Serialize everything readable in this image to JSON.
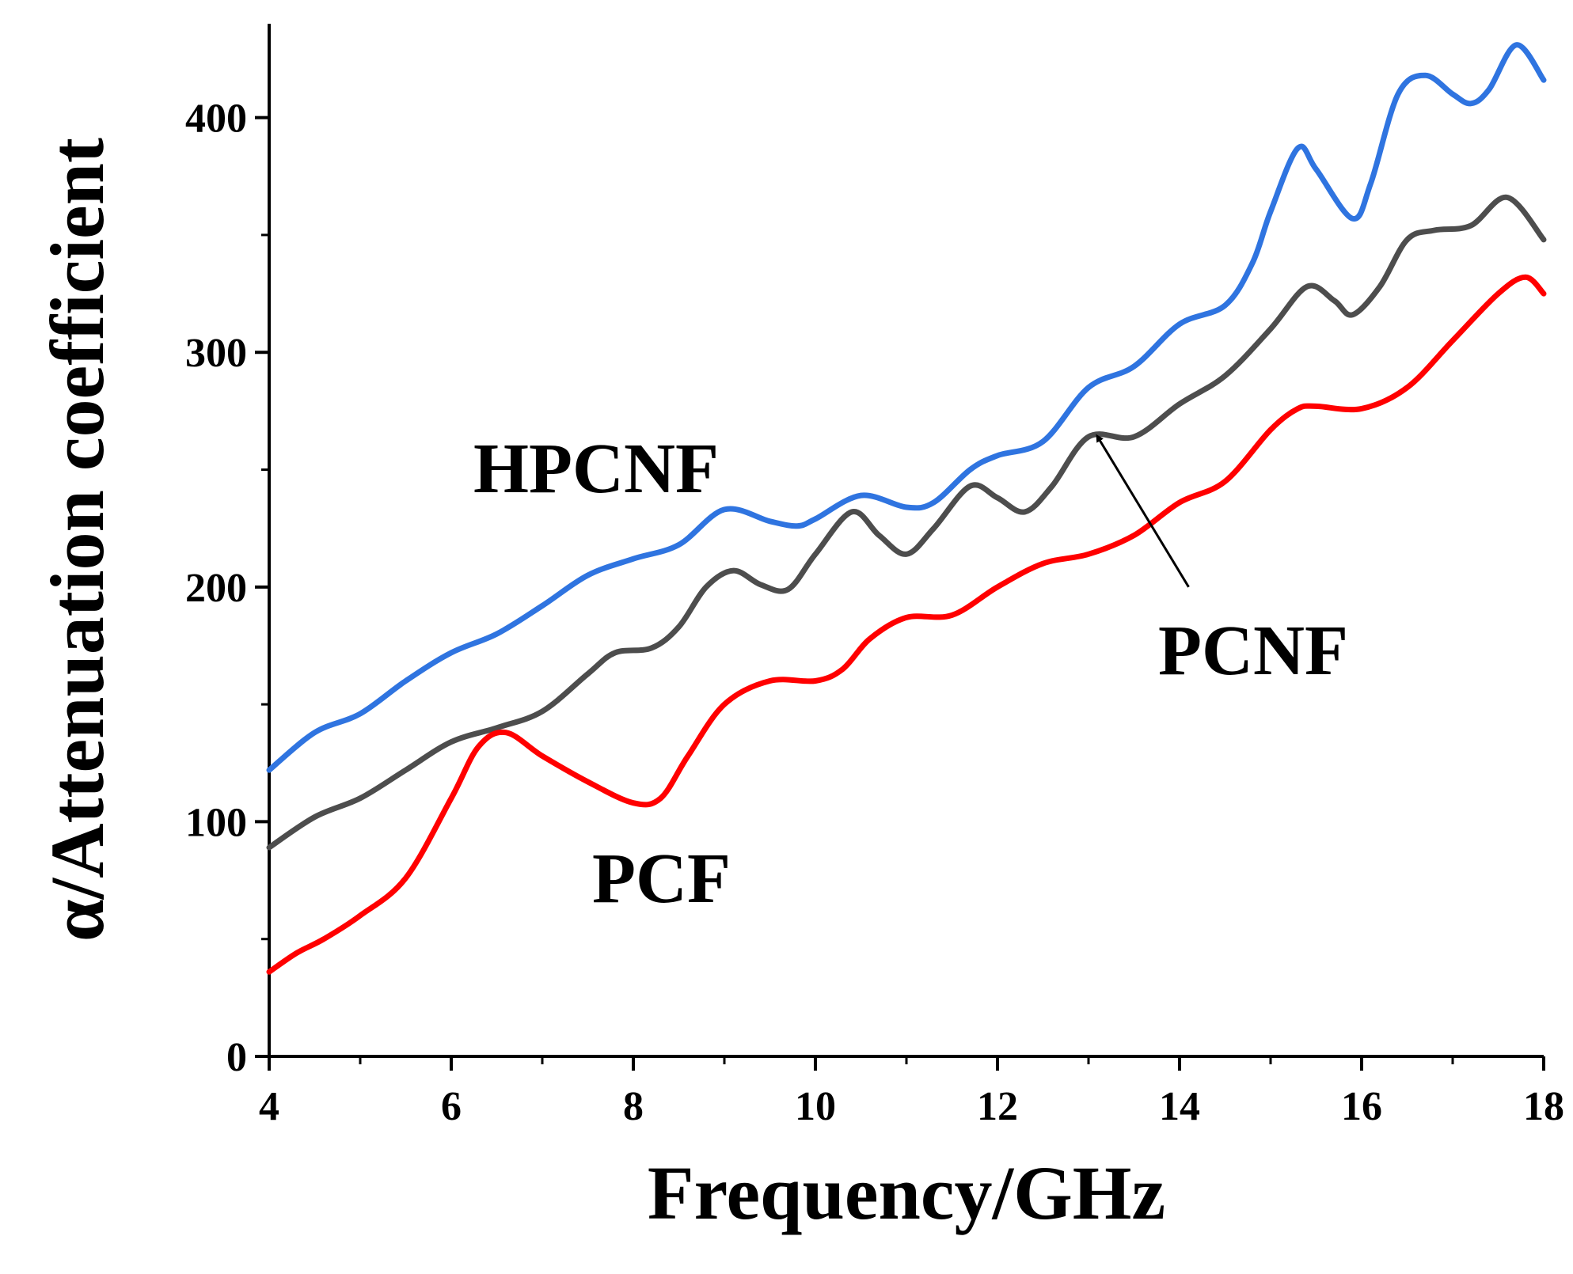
{
  "chart_data": {
    "type": "line",
    "title": "",
    "xlabel": "Frequency/GHz",
    "ylabel": "α/Attenuation coefficient",
    "xlim": [
      4,
      18
    ],
    "ylim": [
      0,
      440
    ],
    "x_ticks": [
      4,
      6,
      8,
      10,
      12,
      14,
      16,
      18
    ],
    "x_tick_labels": [
      "4",
      "6",
      "8",
      "10",
      "12",
      "14",
      "16",
      "18"
    ],
    "y_ticks": [
      0,
      100,
      200,
      300,
      400
    ],
    "y_tick_labels": [
      "0",
      "100",
      "200",
      "300",
      "400"
    ],
    "grid": false,
    "series": [
      {
        "name": "HPCNF",
        "color": "#2f74e0",
        "points": [
          [
            4.0,
            122
          ],
          [
            4.5,
            138
          ],
          [
            5.0,
            146
          ],
          [
            5.5,
            160
          ],
          [
            6.0,
            172
          ],
          [
            6.5,
            180
          ],
          [
            7.0,
            192
          ],
          [
            7.5,
            205
          ],
          [
            8.0,
            212
          ],
          [
            8.5,
            218
          ],
          [
            9.0,
            233
          ],
          [
            9.5,
            228
          ],
          [
            9.8,
            226
          ],
          [
            10.0,
            229
          ],
          [
            10.5,
            239
          ],
          [
            11.0,
            234
          ],
          [
            11.3,
            236
          ],
          [
            11.7,
            250
          ],
          [
            12.0,
            256
          ],
          [
            12.5,
            262
          ],
          [
            13.0,
            285
          ],
          [
            13.5,
            294
          ],
          [
            14.0,
            312
          ],
          [
            14.5,
            320
          ],
          [
            14.8,
            338
          ],
          [
            15.0,
            360
          ],
          [
            15.3,
            387
          ],
          [
            15.5,
            378
          ],
          [
            15.9,
            357
          ],
          [
            16.1,
            372
          ],
          [
            16.4,
            410
          ],
          [
            16.7,
            418
          ],
          [
            17.0,
            410
          ],
          [
            17.2,
            406
          ],
          [
            17.4,
            412
          ],
          [
            17.7,
            431
          ],
          [
            18.0,
            416
          ]
        ]
      },
      {
        "name": "PCNF",
        "color": "#4d4d4d",
        "points": [
          [
            4.0,
            89
          ],
          [
            4.5,
            102
          ],
          [
            5.0,
            110
          ],
          [
            5.5,
            122
          ],
          [
            6.0,
            134
          ],
          [
            6.5,
            140
          ],
          [
            7.0,
            147
          ],
          [
            7.5,
            163
          ],
          [
            7.8,
            172
          ],
          [
            8.2,
            174
          ],
          [
            8.5,
            183
          ],
          [
            8.8,
            200
          ],
          [
            9.1,
            207
          ],
          [
            9.4,
            201
          ],
          [
            9.7,
            199
          ],
          [
            10.0,
            214
          ],
          [
            10.4,
            232
          ],
          [
            10.7,
            222
          ],
          [
            11.0,
            214
          ],
          [
            11.3,
            225
          ],
          [
            11.7,
            243
          ],
          [
            12.0,
            238
          ],
          [
            12.3,
            232
          ],
          [
            12.6,
            243
          ],
          [
            13.0,
            264
          ],
          [
            13.5,
            264
          ],
          [
            14.0,
            278
          ],
          [
            14.5,
            290
          ],
          [
            15.0,
            310
          ],
          [
            15.4,
            328
          ],
          [
            15.7,
            322
          ],
          [
            15.9,
            316
          ],
          [
            16.2,
            328
          ],
          [
            16.5,
            348
          ],
          [
            16.8,
            352
          ],
          [
            17.2,
            354
          ],
          [
            17.6,
            366
          ],
          [
            18.0,
            348
          ]
        ]
      },
      {
        "name": "PCF",
        "color": "#ff0000",
        "points": [
          [
            4.0,
            36
          ],
          [
            4.3,
            44
          ],
          [
            4.6,
            50
          ],
          [
            5.0,
            60
          ],
          [
            5.5,
            76
          ],
          [
            6.0,
            110
          ],
          [
            6.3,
            132
          ],
          [
            6.6,
            138
          ],
          [
            7.0,
            128
          ],
          [
            7.5,
            117
          ],
          [
            8.0,
            108
          ],
          [
            8.3,
            110
          ],
          [
            8.6,
            128
          ],
          [
            9.0,
            150
          ],
          [
            9.5,
            160
          ],
          [
            10.0,
            160
          ],
          [
            10.3,
            165
          ],
          [
            10.6,
            178
          ],
          [
            11.0,
            187
          ],
          [
            11.5,
            188
          ],
          [
            12.0,
            200
          ],
          [
            12.5,
            210
          ],
          [
            13.0,
            214
          ],
          [
            13.5,
            222
          ],
          [
            14.0,
            236
          ],
          [
            14.5,
            245
          ],
          [
            15.0,
            267
          ],
          [
            15.3,
            276
          ],
          [
            15.5,
            277
          ],
          [
            16.0,
            276
          ],
          [
            16.5,
            285
          ],
          [
            17.0,
            305
          ],
          [
            17.5,
            325
          ],
          [
            17.8,
            332
          ],
          [
            18.0,
            325
          ]
        ]
      }
    ],
    "annotations": [
      {
        "text": "HPCNF",
        "series": "HPCNF"
      },
      {
        "text": "PCNF",
        "series": "PCNF",
        "arrow_to": [
          13.1,
          264
        ],
        "arrow_from": [
          14.1,
          200
        ]
      },
      {
        "text": "PCF",
        "series": "PCF"
      }
    ]
  }
}
